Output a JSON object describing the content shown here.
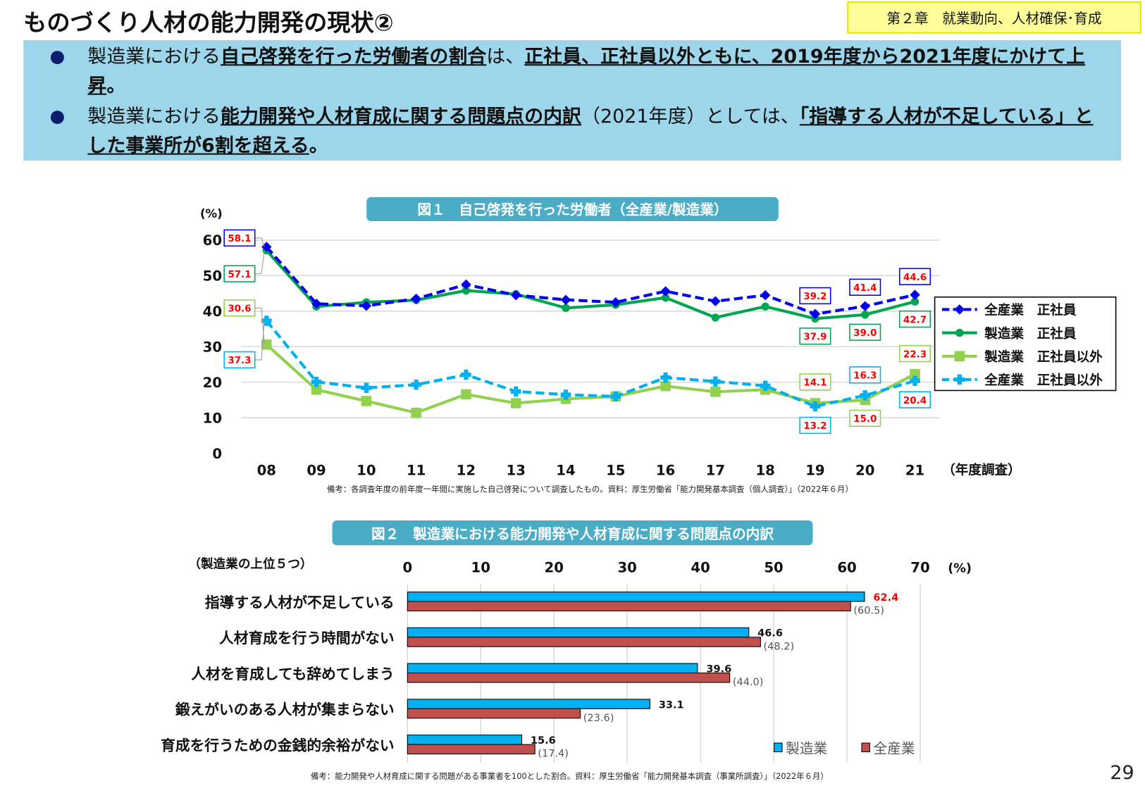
{
  "header": {
    "title": "ものづくり人材の能力開発の現状②",
    "chapter": "第２章　就業動向、人材確保･育成"
  },
  "summary": {
    "bullets": [
      {
        "segments": [
          {
            "text": "製造業における",
            "style": "normal"
          },
          {
            "text": "自己啓発を行った労働者の割合",
            "style": "bold-underline"
          },
          {
            "text": "は、",
            "style": "normal"
          },
          {
            "text": "正社員、正社員以外ともに、2019年度から2021年度にかけて上昇",
            "style": "bold-underline"
          },
          {
            "text": "。",
            "style": "bold"
          }
        ]
      },
      {
        "segments": [
          {
            "text": "製造業における",
            "style": "normal"
          },
          {
            "text": "能力開発や人材育成に関する問題点の内訳",
            "style": "bold-underline"
          },
          {
            "text": "（2021年度）としては、",
            "style": "normal"
          },
          {
            "text": "「指導する人材が不足している」とした事業所が6割を超える",
            "style": "bold-underline"
          },
          {
            "text": "。",
            "style": "bold"
          }
        ]
      }
    ],
    "bullet_glyph": "●"
  },
  "figure1": {
    "title": "図１　自己啓発を行った労働者（全産業/製造業）",
    "note": "備考：各調査年度の前年度一年間に実施した自己啓発について調査したもの。資料：厚生労働省「能力開発基本調査（個人調査）」（2022年６月）"
  },
  "figure2": {
    "title": "図２　製造業における能力開発や人材育成に関する問題点の内訳",
    "note": "備考：能力開発や人材育成に関する問題がある事業者を100とした割合。資料：厚生労働省「能力開発基本調査（事業所調査）」（2022年６月）"
  },
  "page_number": "29",
  "chart_data": [
    {
      "type": "line",
      "ylabel": "(%)",
      "xlabel": "（年度調査）",
      "ylim": [
        0,
        60
      ],
      "yticks": [
        0,
        10,
        20,
        30,
        40,
        50,
        60
      ],
      "grid": true,
      "legend": "right",
      "categories": [
        "08",
        "09",
        "10",
        "11",
        "12",
        "13",
        "14",
        "15",
        "16",
        "17",
        "18",
        "19",
        "20",
        "21"
      ],
      "labeled_categories": [
        "08",
        "19",
        "20",
        "21"
      ],
      "series": [
        {
          "name": "全産業　正社員",
          "color": "#0000ee",
          "dash": true,
          "marker": "diamond",
          "values": [
            58.1,
            42.1,
            41.5,
            43.5,
            47.5,
            44.5,
            43.2,
            42.5,
            45.6,
            42.8,
            44.5,
            39.2,
            41.4,
            44.6
          ]
        },
        {
          "name": "製造業　正社員",
          "color": "#00a550",
          "dash": false,
          "marker": "circle",
          "values": [
            57.1,
            41.3,
            42.5,
            43.1,
            45.8,
            44.8,
            40.9,
            41.8,
            43.8,
            38.2,
            41.3,
            37.9,
            39.0,
            42.7
          ]
        },
        {
          "name": "製造業　正社員以外",
          "color": "#92d050",
          "dash": false,
          "marker": "square",
          "values": [
            30.6,
            17.9,
            14.7,
            11.4,
            16.6,
            14.1,
            15.3,
            16.0,
            18.9,
            17.3,
            17.9,
            14.1,
            15.0,
            22.3
          ]
        },
        {
          "name": "全産業　正社員以外",
          "color": "#00b0f0",
          "dash": true,
          "marker": "cross",
          "values": [
            37.3,
            20.1,
            18.4,
            19.3,
            22.1,
            17.4,
            16.5,
            16.0,
            21.3,
            20.2,
            19.0,
            13.2,
            16.3,
            20.4
          ]
        }
      ],
      "label_color": "#ff0000"
    },
    {
      "type": "bar",
      "orientation": "horizontal",
      "subtitle": "（製造業の上位５つ）",
      "xlabel": "(%)",
      "xlim": [
        0,
        70
      ],
      "xticks": [
        0,
        10,
        20,
        30,
        40,
        50,
        60,
        70
      ],
      "grid": true,
      "legend": "bottom-right",
      "categories": [
        "指導する人材が不足している",
        "人材育成を行う時間がない",
        "人材を育成しても辞めてしまう",
        "鍛えがいのある人材が集まらない",
        "育成を行うための金銭的余裕がない"
      ],
      "series": [
        {
          "name": "製造業",
          "color": "#00b0f0",
          "values": [
            62.4,
            46.6,
            39.6,
            33.1,
            15.6
          ],
          "labels": [
            "62.4",
            "46.6",
            "39.6",
            "33.1",
            "15.6"
          ]
        },
        {
          "name": "全産業",
          "color": "#c0504d",
          "values": [
            60.5,
            48.2,
            44.0,
            23.6,
            17.4
          ],
          "labels": [
            "(60.5)",
            "(48.2)",
            "(44.0)",
            "(23.6)",
            "(17.4)"
          ]
        }
      ],
      "highlight_color": "#ff0000"
    }
  ]
}
